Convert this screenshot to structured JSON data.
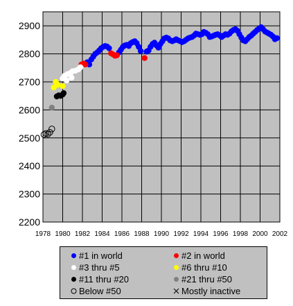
{
  "chart_data": {
    "type": "scatter",
    "xlim": [
      1978,
      2002
    ],
    "ylim": [
      2200,
      2950
    ],
    "x_ticks": [
      1978,
      1980,
      1982,
      1984,
      1986,
      1988,
      1990,
      1992,
      1994,
      1996,
      1998,
      2000,
      2002
    ],
    "y_ticks": [
      2200,
      2300,
      2400,
      2500,
      2600,
      2700,
      2800,
      2900
    ],
    "grid": true,
    "plot_background": "#c0c0c0",
    "legend_position": "bottom",
    "series": [
      {
        "name": "#1 in world",
        "color": "#0000ff",
        "marker": "filled",
        "points": [
          [
            1982.2,
            2765
          ],
          [
            1982.5,
            2770
          ],
          [
            1982.7,
            2762
          ],
          [
            1982.9,
            2780
          ],
          [
            1983.1,
            2790
          ],
          [
            1983.3,
            2800
          ],
          [
            1983.5,
            2805
          ],
          [
            1983.7,
            2812
          ],
          [
            1983.9,
            2820
          ],
          [
            1984.1,
            2825
          ],
          [
            1984.3,
            2828
          ],
          [
            1984.5,
            2826
          ],
          [
            1984.7,
            2820
          ],
          [
            1985.7,
            2805
          ],
          [
            1985.9,
            2815
          ],
          [
            1986.1,
            2825
          ],
          [
            1986.3,
            2830
          ],
          [
            1986.5,
            2832
          ],
          [
            1986.7,
            2828
          ],
          [
            1986.9,
            2838
          ],
          [
            1987.1,
            2842
          ],
          [
            1987.3,
            2845
          ],
          [
            1987.5,
            2838
          ],
          [
            1987.7,
            2825
          ],
          [
            1987.9,
            2810
          ],
          [
            1988.5,
            2808
          ],
          [
            1988.7,
            2812
          ],
          [
            1988.9,
            2825
          ],
          [
            1989.1,
            2835
          ],
          [
            1989.3,
            2840
          ],
          [
            1989.5,
            2830
          ],
          [
            1989.7,
            2822
          ],
          [
            1989.9,
            2835
          ],
          [
            1990.1,
            2845
          ],
          [
            1990.3,
            2855
          ],
          [
            1990.5,
            2858
          ],
          [
            1990.7,
            2855
          ],
          [
            1990.9,
            2848
          ],
          [
            1991.1,
            2845
          ],
          [
            1991.3,
            2848
          ],
          [
            1991.5,
            2852
          ],
          [
            1991.7,
            2848
          ],
          [
            1991.9,
            2845
          ],
          [
            1992.1,
            2842
          ],
          [
            1992.3,
            2845
          ],
          [
            1992.5,
            2850
          ],
          [
            1992.7,
            2855
          ],
          [
            1992.9,
            2858
          ],
          [
            1993.1,
            2860
          ],
          [
            1993.3,
            2865
          ],
          [
            1993.5,
            2872
          ],
          [
            1993.7,
            2870
          ],
          [
            1993.9,
            2868
          ],
          [
            1994.1,
            2870
          ],
          [
            1994.3,
            2878
          ],
          [
            1994.5,
            2875
          ],
          [
            1994.7,
            2870
          ],
          [
            1994.9,
            2860
          ],
          [
            1995.1,
            2862
          ],
          [
            1995.3,
            2865
          ],
          [
            1995.5,
            2868
          ],
          [
            1995.7,
            2870
          ],
          [
            1995.9,
            2866
          ],
          [
            1996.1,
            2860
          ],
          [
            1996.3,
            2865
          ],
          [
            1996.5,
            2870
          ],
          [
            1996.7,
            2868
          ],
          [
            1996.9,
            2872
          ],
          [
            1997.1,
            2880
          ],
          [
            1997.3,
            2885
          ],
          [
            1997.5,
            2888
          ],
          [
            1997.7,
            2882
          ],
          [
            1997.9,
            2870
          ],
          [
            1998.1,
            2858
          ],
          [
            1998.3,
            2848
          ],
          [
            1998.5,
            2845
          ],
          [
            1998.7,
            2852
          ],
          [
            1998.9,
            2860
          ],
          [
            1999.1,
            2865
          ],
          [
            1999.3,
            2872
          ],
          [
            1999.5,
            2878
          ],
          [
            1999.7,
            2885
          ],
          [
            1999.9,
            2890
          ],
          [
            2000.1,
            2895
          ],
          [
            2000.3,
            2888
          ],
          [
            2000.5,
            2880
          ],
          [
            2000.7,
            2876
          ],
          [
            2000.9,
            2872
          ],
          [
            2001.1,
            2868
          ],
          [
            2001.3,
            2862
          ],
          [
            2001.5,
            2852
          ],
          [
            2001.7,
            2856
          ]
        ]
      },
      {
        "name": "#2 in world",
        "color": "#ff0000",
        "marker": "filled",
        "points": [
          [
            1981.9,
            2762
          ],
          [
            1982.1,
            2765
          ],
          [
            1982.3,
            2762
          ],
          [
            1984.9,
            2802
          ],
          [
            1985.1,
            2798
          ],
          [
            1985.3,
            2793
          ],
          [
            1985.5,
            2795
          ],
          [
            1988.3,
            2785
          ]
        ]
      },
      {
        "name": "#3 thru #5",
        "color": "#ffffff",
        "marker": "filled",
        "points": [
          [
            1980.0,
            2712
          ],
          [
            1980.2,
            2722
          ],
          [
            1980.5,
            2728
          ],
          [
            1980.8,
            2732
          ],
          [
            1981.0,
            2738
          ],
          [
            1981.3,
            2740
          ],
          [
            1981.6,
            2745
          ],
          [
            1981.8,
            2752
          ],
          [
            1980.4,
            2705
          ],
          [
            1980.9,
            2715
          ]
        ]
      },
      {
        "name": "#6 thru #10",
        "color": "#ffff00",
        "marker": "filled",
        "points": [
          [
            1979.1,
            2680
          ],
          [
            1979.3,
            2700
          ],
          [
            1979.5,
            2690
          ],
          [
            1980.0,
            2685
          ]
        ]
      },
      {
        "name": "#11 thru #20",
        "color": "#000000",
        "marker": "filled",
        "points": [
          [
            1979.4,
            2648
          ],
          [
            1979.6,
            2652
          ],
          [
            1979.8,
            2650
          ],
          [
            1980.0,
            2655
          ],
          [
            1980.1,
            2660
          ]
        ]
      },
      {
        "name": "#21 thru #50",
        "color": "#808080",
        "marker": "filled",
        "points": [
          [
            1978.9,
            2608
          ]
        ]
      },
      {
        "name": "Below #50",
        "color": "#000000",
        "marker": "open",
        "points": [
          [
            1978.1,
            2512
          ],
          [
            1978.3,
            2516
          ],
          [
            1978.5,
            2514
          ],
          [
            1978.7,
            2520
          ],
          [
            1978.9,
            2532
          ]
        ]
      },
      {
        "name": "Mostly inactive",
        "color": "#000000",
        "marker": "cross",
        "points": []
      }
    ]
  }
}
